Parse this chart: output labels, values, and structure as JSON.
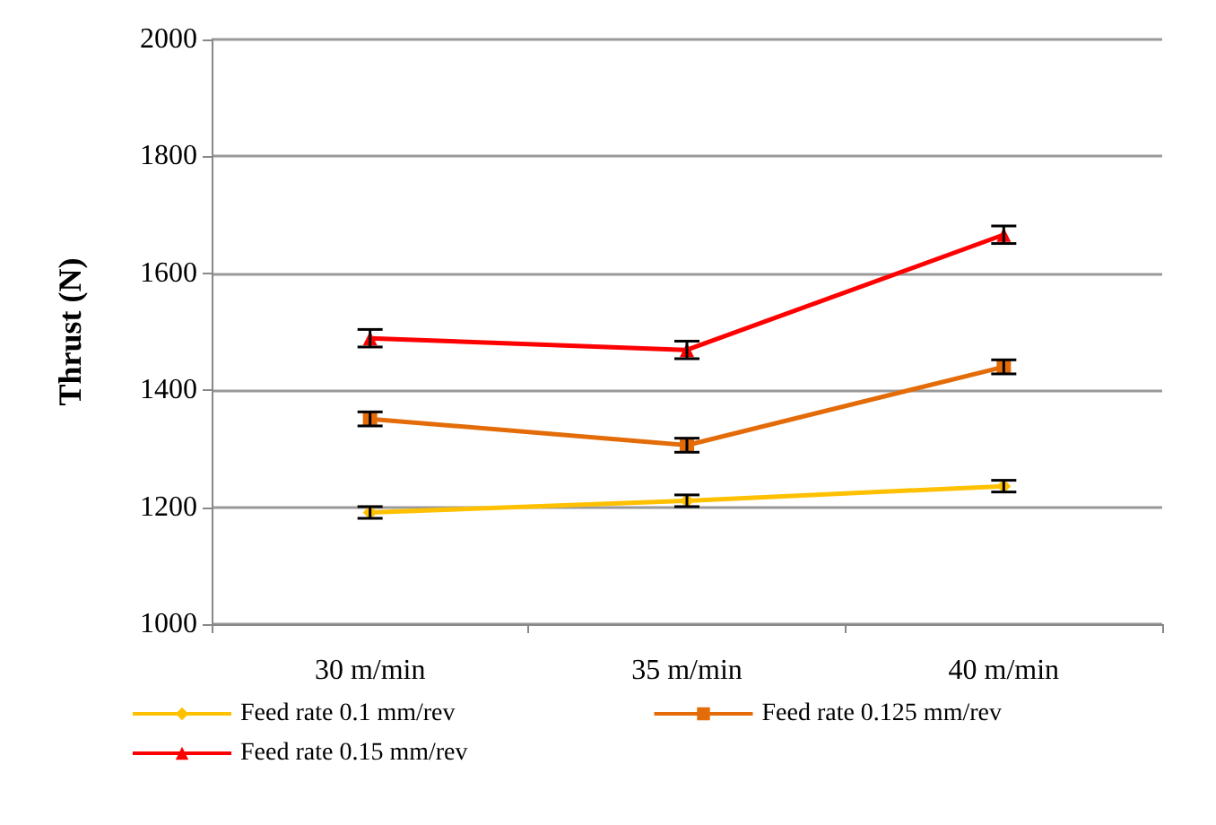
{
  "chart_data": {
    "type": "line",
    "ylabel": "Thrust (N)",
    "categories": [
      "30 m/min",
      "35 m/min",
      "40 m/min"
    ],
    "series": [
      {
        "name": "Feed rate 0.1 mm/rev",
        "color": "#ffc000",
        "marker": "diamond",
        "values": [
          1191,
          1211,
          1236
        ],
        "errors": [
          10,
          10,
          10
        ]
      },
      {
        "name": "Feed rate 0.125 mm/rev",
        "color": "#e36c09",
        "marker": "square",
        "values": [
          1351,
          1306,
          1440
        ],
        "errors": [
          12,
          12,
          12
        ]
      },
      {
        "name": "Feed rate 0.15 mm/rev",
        "color": "#ff0000",
        "marker": "triangle",
        "values": [
          1489,
          1469,
          1666
        ],
        "errors": [
          15,
          15,
          15
        ]
      }
    ],
    "ylim": [
      1000,
      2000
    ],
    "yticks": [
      1000,
      1200,
      1400,
      1600,
      1800,
      2000
    ],
    "grid": "y",
    "legend": "bottom"
  }
}
